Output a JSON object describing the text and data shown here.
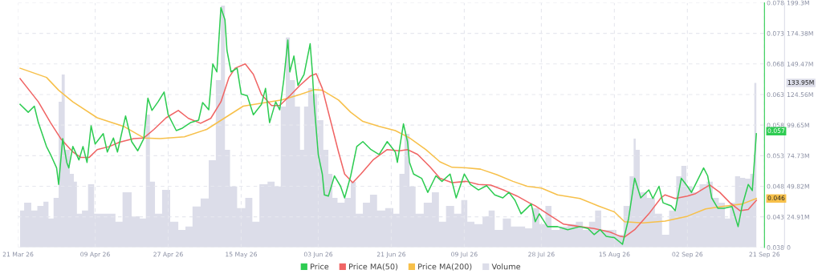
{
  "chart_data": {
    "type": "line",
    "xlim": [
      "2026-03-21",
      "2026-09-21"
    ],
    "xticks": [
      {
        "value": "2026-03-21",
        "label": "21 Mar 26"
      },
      {
        "value": "2026-04-09",
        "label": "09 Apr 26"
      },
      {
        "value": "2026-04-27",
        "label": "27 Apr 26"
      },
      {
        "value": "2026-05-15",
        "label": "15 May 26"
      },
      {
        "value": "2026-06-03",
        "label": "03 Jun 26"
      },
      {
        "value": "2026-06-21",
        "label": "21 Jun 26"
      },
      {
        "value": "2026-07-09",
        "label": "09 Jul 26"
      },
      {
        "value": "2026-07-28",
        "label": "28 Jul 26"
      },
      {
        "value": "2026-08-15",
        "label": "15 Aug 26"
      },
      {
        "value": "2026-09-02",
        "label": "02 Sep 26"
      },
      {
        "value": "2026-09-21",
        "label": "21 Sep 26"
      }
    ],
    "ylim": [
      0.038,
      0.078
    ],
    "yticks": [
      0.038,
      0.043,
      0.048,
      0.053,
      0.058,
      0.063,
      0.068,
      0.073,
      0.078
    ],
    "y2lim": [
      0,
      199.3
    ],
    "y2ticks": [
      0,
      {
        "value": 24.91,
        "label": "24.91M"
      },
      {
        "value": 49.82,
        "label": "49.82M"
      },
      {
        "value": 74.73,
        "label": "74.73M"
      },
      {
        "value": 99.65,
        "label": "99.65M"
      },
      {
        "value": 124.56,
        "label": "124.56M"
      },
      {
        "value": 149.47,
        "label": "149.47M"
      },
      {
        "value": 174.38,
        "label": "174.38M"
      },
      {
        "value": 199.3,
        "label": "199.3M"
      }
    ],
    "grid": true,
    "legend": "bottom",
    "marker": "none",
    "line_style": "solid",
    "series": [
      {
        "name": "Volume",
        "type": "area",
        "axis": "y2",
        "color": "#dcdde9",
        "x": [
          "2026-03-21T12:00",
          "2026-03-23T12:00",
          "2026-03-25",
          "2026-03-26T12:00",
          "2026-03-28",
          "2026-03-29",
          "2026-03-30T12:00",
          "2026-03-31T12:00",
          "2026-04-01",
          "2026-04-02",
          "2026-04-03T12:00",
          "2026-04-04",
          "2026-04-05",
          "2026-04-06T12:00",
          "2026-04-08",
          "2026-04-09T12:00",
          "2026-04-11T12:00",
          "2026-04-13T12:00",
          "2026-04-14T12:00",
          "2026-04-17",
          "2026-04-19",
          "2026-04-21",
          "2026-04-22",
          "2026-04-23",
          "2026-04-24T12:00",
          "2026-04-26T12:00",
          "2026-04-28T12:00",
          "2026-04-30T12:00",
          "2026-05-02",
          "2026-05-04",
          "2026-05-06",
          "2026-05-08",
          "2026-05-09T12:00",
          "2026-05-10T12:00",
          "2026-05-11T12:00",
          "2026-05-13",
          "2026-05-15",
          "2026-05-17",
          "2026-05-18T12:00",
          "2026-05-20T12:00",
          "2026-05-22T12:00",
          "2026-05-24",
          "2026-05-25T12:00",
          "2026-05-26T12:00",
          "2026-05-27T12:00",
          "2026-05-29",
          "2026-05-30",
          "2026-05-31",
          "2026-06-01",
          "2026-06-02",
          "2026-06-03T12:00",
          "2026-06-05",
          "2026-06-06",
          "2026-06-07",
          "2026-06-08T12:00",
          "2026-06-10T12:00",
          "2026-06-11T12:00",
          "2026-06-13",
          "2026-06-15",
          "2026-06-16T12:00",
          "2026-06-18T12:00",
          "2026-06-20T12:00",
          "2026-06-22T12:00",
          "2026-06-23T12:00",
          "2026-06-25",
          "2026-06-26",
          "2026-06-28",
          "2026-06-30",
          "2026-07-02",
          "2026-07-03T12:00",
          "2026-07-05T12:00",
          "2026-07-07T12:00",
          "2026-07-09",
          "2026-07-10T12:00",
          "2026-07-12T12:00",
          "2026-07-14T12:00",
          "2026-07-15T12:00",
          "2026-07-17T12:00",
          "2026-07-19T12:00",
          "2026-07-21T12:00",
          "2026-07-23",
          "2026-07-25",
          "2026-07-26T12:00",
          "2026-07-28T12:00",
          "2026-07-29T12:00",
          "2026-07-31T12:00",
          "2026-08-02T12:00",
          "2026-08-04T12:00",
          "2026-08-06T12:00",
          "2026-08-08",
          "2026-08-09T12:00",
          "2026-08-11",
          "2026-08-12T12:00",
          "2026-08-14T12:00",
          "2026-08-16T12:00",
          "2026-08-18",
          "2026-08-19T12:00",
          "2026-08-20",
          "2026-08-20T12:00",
          "2026-08-22",
          "2026-08-24",
          "2026-08-26",
          "2026-08-27T12:00",
          "2026-08-29T12:00",
          "2026-08-31",
          "2026-09-01",
          "2026-09-02T12:00",
          "2026-09-04",
          "2026-09-06",
          "2026-09-07T12:00",
          "2026-09-09",
          "2026-09-10T12:00",
          "2026-09-12",
          "2026-09-13",
          "2026-09-14T12:00",
          "2026-09-15T12:00",
          "2026-09-17",
          "2026-09-18",
          "2026-09-19"
        ],
        "values": [
          30,
          36.5,
          30,
          33.9,
          37.2,
          23.5,
          40.4,
          118.7,
          140.8,
          79.5,
          60,
          53.5,
          27.4,
          30,
          51.5,
          27.4,
          27.4,
          27.4,
          20.9,
          45,
          25.4,
          23.5,
          108.2,
          53.5,
          27.4,
          46.9,
          20.9,
          14.3,
          17,
          33.3,
          39.8,
          71,
          136.3,
          197,
          79.5,
          49.6,
          32,
          40.4,
          20.9,
          51.5,
          53.5,
          49.6,
          114.8,
          171,
          136.3,
          114.8,
          79.5,
          114.8,
          129.8,
          125,
          103.7,
          79.5,
          60,
          40.4,
          36.5,
          40.4,
          53.5,
          27.4,
          36.5,
          43,
          30,
          32,
          27.4,
          60,
          92.6,
          49.6,
          27.4,
          36.5,
          45,
          20.9,
          33.9,
          27.4,
          38.5,
          20.9,
          18.9,
          25.4,
          30,
          14.3,
          23.5,
          17,
          17,
          15.6,
          32,
          18.9,
          33.9,
          14.3,
          17,
          18.9,
          20.9,
          14.3,
          20.9,
          30,
          14.3,
          14.3,
          10.4,
          33.9,
          58,
          88.7,
          79.5,
          45,
          40.4,
          27.4,
          10.4,
          30,
          58,
          66.5,
          49.6,
          45,
          51.5,
          53.5,
          40.4,
          36.5,
          23.5,
          36.5,
          58,
          56.7,
          56,
          60,
          134
        ]
      },
      {
        "name": "Price MA(200)",
        "color": "#f7c04a",
        "x": [
          "2026-03-21T12:00",
          "2026-03-28",
          "2026-03-31",
          "2026-04-03T12:00",
          "2026-04-09T12:00",
          "2026-04-16",
          "2026-04-21",
          "2026-04-25",
          "2026-05-01",
          "2026-05-06T12:00",
          "2026-05-11",
          "2026-05-15T12:00",
          "2026-05-21",
          "2026-05-25",
          "2026-05-29T12:00",
          "2026-06-02",
          "2026-06-04",
          "2026-06-08",
          "2026-06-11",
          "2026-06-14",
          "2026-06-18",
          "2026-06-22",
          "2026-06-25T12:00",
          "2026-06-29T12:00",
          "2026-07-03",
          "2026-07-06",
          "2026-07-09T12:00",
          "2026-07-13",
          "2026-07-17",
          "2026-07-21",
          "2026-07-24T12:00",
          "2026-07-28",
          "2026-08-01",
          "2026-08-06T12:00",
          "2026-08-11",
          "2026-08-15",
          "2026-08-17T12:00",
          "2026-08-22",
          "2026-08-27T12:00",
          "2026-09-02",
          "2026-09-06T12:00",
          "2026-09-10T12:00",
          "2026-09-15T12:00",
          "2026-09-19"
        ],
        "values": [
          0.0673,
          0.0658,
          0.0637,
          0.0618,
          0.0592,
          0.0578,
          0.0559,
          0.0558,
          0.0561,
          0.0573,
          0.0592,
          0.0611,
          0.0617,
          0.0621,
          0.063,
          0.0638,
          0.0637,
          0.0621,
          0.0601,
          0.0586,
          0.0578,
          0.0571,
          0.0559,
          0.054,
          0.052,
          0.0511,
          0.051,
          0.0508,
          0.0499,
          0.0488,
          0.048,
          0.0477,
          0.0466,
          0.046,
          0.0448,
          0.0438,
          0.0422,
          0.042,
          0.0423,
          0.0431,
          0.0443,
          0.0447,
          0.0451,
          0.046
        ]
      },
      {
        "name": "Price MA(50)",
        "color": "#f06464",
        "x": [
          "2026-03-21T12:00",
          "2026-03-26",
          "2026-03-29",
          "2026-03-31T12:00",
          "2026-04-03T12:00",
          "2026-04-05T12:00",
          "2026-04-07T12:00",
          "2026-04-09T12:00",
          "2026-04-12T12:00",
          "2026-04-15",
          "2026-04-18T12:00",
          "2026-04-21",
          "2026-04-23T12:00",
          "2026-04-26T12:00",
          "2026-04-29T12:00",
          "2026-05-02",
          "2026-05-05",
          "2026-05-07T12:00",
          "2026-05-10",
          "2026-05-12",
          "2026-05-13T12:00",
          "2026-05-16",
          "2026-05-18",
          "2026-05-20",
          "2026-05-22T12:00",
          "2026-05-24T12:00",
          "2026-05-27",
          "2026-05-29T12:00",
          "2026-06-01",
          "2026-06-02T12:00",
          "2026-06-04",
          "2026-06-06",
          "2026-06-08",
          "2026-06-09T12:00",
          "2026-06-11T12:00",
          "2026-06-13T12:00",
          "2026-06-16T12:00",
          "2026-06-20",
          "2026-06-23",
          "2026-06-25",
          "2026-06-27T12:00",
          "2026-06-30T12:00",
          "2026-07-03",
          "2026-07-06",
          "2026-07-09T12:00",
          "2026-07-12T12:00",
          "2026-07-15T12:00",
          "2026-07-19",
          "2026-07-22",
          "2026-07-25",
          "2026-07-26T12:00",
          "2026-07-29T12:00",
          "2026-08-02T12:00",
          "2026-08-06T12:00",
          "2026-08-10",
          "2026-08-14",
          "2026-08-16T12:00",
          "2026-08-17T12:00",
          "2026-08-20",
          "2026-08-23T12:00",
          "2026-08-26T12:00",
          "2026-08-27T12:00",
          "2026-08-30",
          "2026-09-02",
          "2026-09-04",
          "2026-09-07T12:00",
          "2026-09-10",
          "2026-09-12T12:00",
          "2026-09-15",
          "2026-09-17",
          "2026-09-19"
        ],
        "values": [
          0.0656,
          0.0618,
          0.0584,
          0.0558,
          0.0536,
          0.0527,
          0.0527,
          0.054,
          0.0545,
          0.0552,
          0.0558,
          0.0559,
          0.0573,
          0.0592,
          0.0604,
          0.0591,
          0.0583,
          0.0591,
          0.0618,
          0.0658,
          0.0673,
          0.068,
          0.0663,
          0.063,
          0.0612,
          0.0612,
          0.0628,
          0.0645,
          0.066,
          0.0664,
          0.064,
          0.0588,
          0.0536,
          0.05,
          0.0486,
          0.05,
          0.0523,
          0.054,
          0.0538,
          0.054,
          0.0532,
          0.0512,
          0.0493,
          0.0486,
          0.0488,
          0.0483,
          0.0482,
          0.0473,
          0.0464,
          0.0453,
          0.0448,
          0.0435,
          0.0418,
          0.0414,
          0.0411,
          0.0405,
          0.0398,
          0.0397,
          0.0409,
          0.0435,
          0.0461,
          0.0466,
          0.046,
          0.0464,
          0.0468,
          0.0482,
          0.047,
          0.0453,
          0.044,
          0.0442,
          0.0457
        ]
      },
      {
        "name": "Price",
        "color": "#2ecc52",
        "x": [
          "2026-03-21T12:00",
          "2026-03-23T12:00",
          "2026-03-25",
          "2026-03-26",
          "2026-03-28",
          "2026-03-29",
          "2026-03-30T12:00",
          "2026-03-31",
          "2026-04-01",
          "2026-04-02",
          "2026-04-02T12:00",
          "2026-04-03T12:00",
          "2026-04-05",
          "2026-04-06",
          "2026-04-07",
          "2026-04-08",
          "2026-04-09",
          "2026-04-11",
          "2026-04-12",
          "2026-04-13T12:00",
          "2026-04-14T12:00",
          "2026-04-16T12:00",
          "2026-04-18",
          "2026-04-19T12:00",
          "2026-04-21",
          "2026-04-22",
          "2026-04-23",
          "2026-04-24T12:00",
          "2026-04-26",
          "2026-04-27",
          "2026-04-29",
          "2026-04-30T12:00",
          "2026-05-02T12:00",
          "2026-05-04T12:00",
          "2026-05-05T12:00",
          "2026-05-07",
          "2026-05-08",
          "2026-05-09",
          "2026-05-10",
          "2026-05-11",
          "2026-05-11T12:00",
          "2026-05-12T12:00",
          "2026-05-14",
          "2026-05-15",
          "2026-05-16T12:00",
          "2026-05-18",
          "2026-05-20",
          "2026-05-21",
          "2026-05-22",
          "2026-05-23T12:00",
          "2026-05-24T12:00",
          "2026-05-25T12:00",
          "2026-05-26T12:00",
          "2026-05-27",
          "2026-05-28",
          "2026-05-29",
          "2026-05-30T12:00",
          "2026-06-01",
          "2026-06-01T12:00",
          "2026-06-02",
          "2026-06-03",
          "2026-06-04",
          "2026-06-04T12:00",
          "2026-06-05T12:00",
          "2026-06-07",
          "2026-06-08T12:00",
          "2026-06-09T12:00",
          "2026-06-11",
          "2026-06-12T12:00",
          "2026-06-14",
          "2026-06-16",
          "2026-06-18",
          "2026-06-20",
          "2026-06-22",
          "2026-06-22T12:00",
          "2026-06-24",
          "2026-06-25",
          "2026-06-25T12:00",
          "2026-06-26T12:00",
          "2026-06-28T12:00",
          "2026-06-30",
          "2026-07-02",
          "2026-07-03T12:00",
          "2026-07-05T12:00",
          "2026-07-07",
          "2026-07-09",
          "2026-07-10T12:00",
          "2026-07-12T12:00",
          "2026-07-14T12:00",
          "2026-07-16T12:00",
          "2026-07-18T12:00",
          "2026-07-20",
          "2026-07-21T12:00",
          "2026-07-23",
          "2026-07-25T12:00",
          "2026-07-26T12:00",
          "2026-07-27T12:00",
          "2026-07-29T12:00",
          "2026-08-01",
          "2026-08-03T12:00",
          "2026-08-06T12:00",
          "2026-08-08T12:00",
          "2026-08-10",
          "2026-08-11T12:00",
          "2026-08-13",
          "2026-08-15",
          "2026-08-16T12:00",
          "2026-08-17",
          "2026-08-18T12:00",
          "2026-08-20",
          "2026-08-21T12:00",
          "2026-08-23T12:00",
          "2026-08-24T12:00",
          "2026-08-26",
          "2026-08-27",
          "2026-08-29",
          "2026-08-30",
          "2026-08-31T12:00",
          "2026-09-02",
          "2026-09-03",
          "2026-09-04",
          "2026-09-06",
          "2026-09-07",
          "2026-09-08",
          "2026-09-09T12:00",
          "2026-09-11",
          "2026-09-13",
          "2026-09-14T12:00",
          "2026-09-15T12:00",
          "2026-09-17",
          "2026-09-18",
          "2026-09-19"
        ],
        "values": [
          0.0614,
          0.0601,
          0.0611,
          0.0584,
          0.0545,
          0.0532,
          0.051,
          0.0483,
          0.0558,
          0.0519,
          0.051,
          0.0545,
          0.0523,
          0.0545,
          0.0519,
          0.0579,
          0.0549,
          0.0566,
          0.0536,
          0.0559,
          0.0536,
          0.0595,
          0.0553,
          0.0538,
          0.0558,
          0.0624,
          0.0604,
          0.0618,
          0.0634,
          0.0597,
          0.0571,
          0.0575,
          0.0584,
          0.0588,
          0.0617,
          0.0605,
          0.068,
          0.0667,
          0.0772,
          0.0752,
          0.0702,
          0.0667,
          0.0673,
          0.0631,
          0.0628,
          0.0597,
          0.0614,
          0.064,
          0.0584,
          0.0618,
          0.0605,
          0.0654,
          0.0719,
          0.0667,
          0.0693,
          0.0645,
          0.0663,
          0.0713,
          0.0671,
          0.0614,
          0.0532,
          0.05,
          0.0466,
          0.0464,
          0.0497,
          0.048,
          0.0461,
          0.0497,
          0.0545,
          0.0553,
          0.054,
          0.0532,
          0.0553,
          0.0536,
          0.0519,
          0.0582,
          0.0553,
          0.0519,
          0.05,
          0.0493,
          0.047,
          0.0497,
          0.0488,
          0.05,
          0.0461,
          0.05,
          0.0483,
          0.0474,
          0.0481,
          0.0466,
          0.0461,
          0.047,
          0.0457,
          0.0435,
          0.0451,
          0.0422,
          0.0435,
          0.0414,
          0.0414,
          0.0409,
          0.0414,
          0.0411,
          0.0401,
          0.0409,
          0.0398,
          0.0396,
          0.0388,
          0.0385,
          0.0427,
          0.0493,
          0.0461,
          0.0474,
          0.046,
          0.048,
          0.0453,
          0.0448,
          0.044,
          0.0493,
          0.048,
          0.047,
          0.0483,
          0.051,
          0.0497,
          0.0461,
          0.0444,
          0.0444,
          0.0447,
          0.0414,
          0.0448,
          0.0483,
          0.0473,
          0.0566
        ]
      }
    ],
    "annotations": [
      {
        "text": "0.057",
        "x": "2026-09-19",
        "y": 0.057
      },
      {
        "text": "0.046",
        "x": "2026-09-19",
        "y": 0.046
      },
      "133.95M"
    ]
  }
}
